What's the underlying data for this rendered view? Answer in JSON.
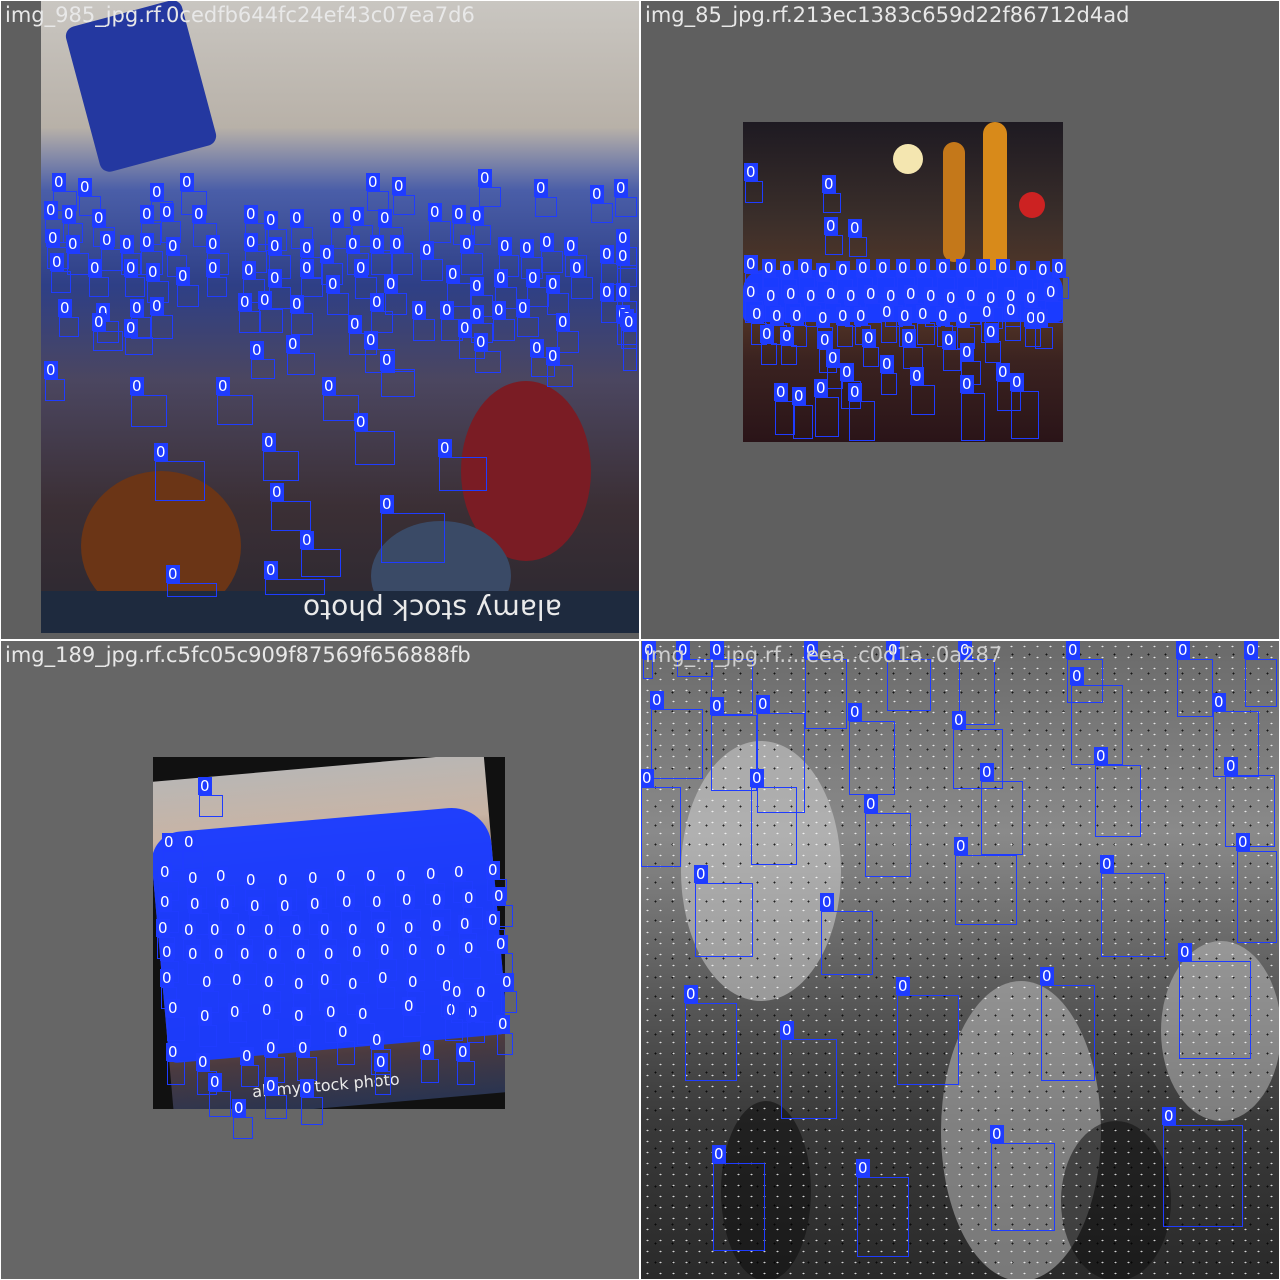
{
  "tiles": [
    {
      "title": "img_985_jpg.rf.0cedfb644fc24ef43c07ea7d6"
    },
    {
      "title": "img_85_jpg.rf.213ec1383c659d22f86712d4ad"
    },
    {
      "title": "img_189_jpg.rf.c5fc05c909f87569f656888fb"
    },
    {
      "title": "img_..._jpg.rf....eea..c0d1a..0a287"
    }
  ],
  "box_label": "0",
  "watermark_1": "alamy stock photo",
  "watermark_2": "alamy stock photo",
  "colors": {
    "box": "#1f3cff",
    "canvas": "#5f5f5f"
  }
}
